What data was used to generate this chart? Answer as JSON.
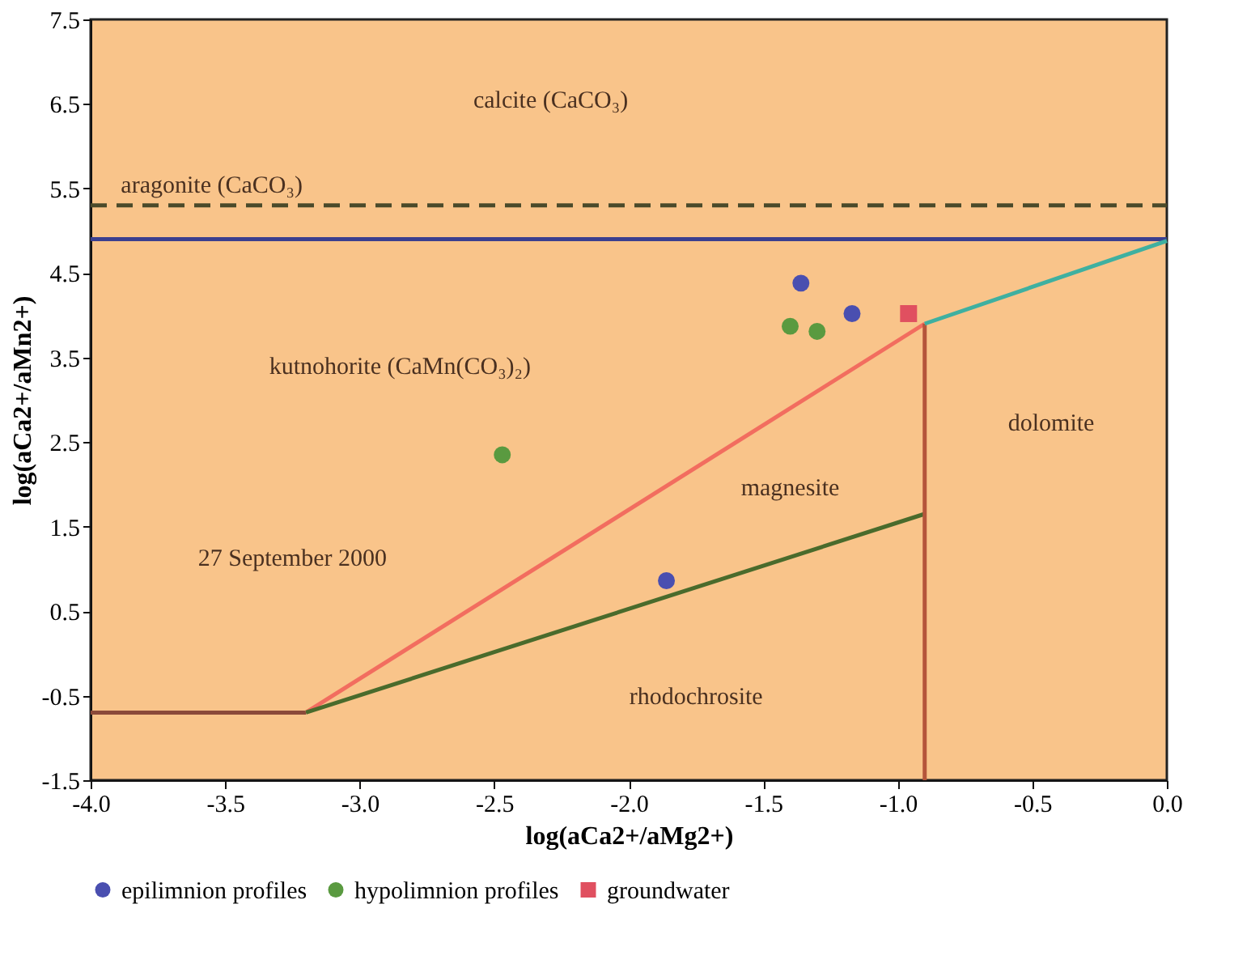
{
  "chart_data": {
    "type": "line",
    "xlabel": "log(aCa2+/aMg2+)",
    "ylabel": "log(aCa2+/aMn2+)",
    "xlim": [
      -4,
      0
    ],
    "ylim": [
      -1.5,
      7.5
    ],
    "xticks": [
      {
        "value": -4,
        "label": "-4.0"
      },
      -3.5,
      {
        "value": -3,
        "label": "-3.0"
      },
      -2.5,
      {
        "value": -2,
        "label": "-2.0"
      },
      -1.5,
      {
        "value": -1,
        "label": "-1.0"
      },
      -0.5,
      {
        "value": 0,
        "label": "0.0"
      }
    ],
    "yticks": [
      -1.5,
      -0.5,
      0.5,
      1.5,
      2.5,
      3.5,
      4.5,
      5.5,
      6.5,
      7.5
    ],
    "legend": "bottom",
    "series": [
      {
        "color": "#3b3f8f",
        "line_style": "solid",
        "x": [
          -4,
          0
        ],
        "values": [
          4.9,
          4.9
        ]
      },
      {
        "color": "#4b4a2a",
        "line_style": "dashed",
        "x": [
          -4,
          0
        ],
        "values": [
          5.3,
          5.3
        ]
      },
      {
        "color": "#8b4a3a",
        "line_style": "solid",
        "x": [
          -4,
          -3.2
        ],
        "values": [
          -0.7,
          -0.7
        ]
      },
      {
        "color": "#f26d5f",
        "line_style": "solid",
        "x": [
          -3.2,
          -0.9
        ],
        "values": [
          -0.7,
          3.9
        ]
      },
      {
        "color": "#4a6b2c",
        "line_style": "solid",
        "x": [
          -3.2,
          -0.9
        ],
        "values": [
          -0.7,
          1.65
        ]
      },
      {
        "color": "#b5553a",
        "line_style": "solid",
        "x": [
          -0.9,
          -0.9
        ],
        "values": [
          -1.5,
          3.9
        ]
      },
      {
        "color": "#3fb0a0",
        "line_style": "solid",
        "x": [
          -0.9,
          0
        ],
        "values": [
          3.9,
          4.88
        ]
      },
      {
        "type": "scatter",
        "name": "epilimnion profiles",
        "color": "#4a4fb0",
        "marker": "circle",
        "x": [
          -1.36,
          -1.17,
          -1.86
        ],
        "values": [
          4.38,
          4.02,
          0.86
        ]
      },
      {
        "type": "scatter",
        "name": "hypolimnion profiles",
        "color": "#5a9a40",
        "marker": "circle",
        "x": [
          -1.3,
          -1.4,
          -2.47
        ],
        "values": [
          3.81,
          3.87,
          2.35
        ]
      },
      {
        "type": "scatter",
        "name": "groundwater",
        "color": "#e05060",
        "marker": "square",
        "x": [
          -0.96
        ],
        "values": [
          4.02
        ]
      }
    ],
    "annotations": [
      "calcite (CaCO₃)",
      "aragonite (CaCO₃)",
      "kutnohorite (CaMn(CO₃)₂)",
      "magnesite",
      "dolomite",
      "rhodochrosite",
      "27 September 2000"
    ]
  }
}
